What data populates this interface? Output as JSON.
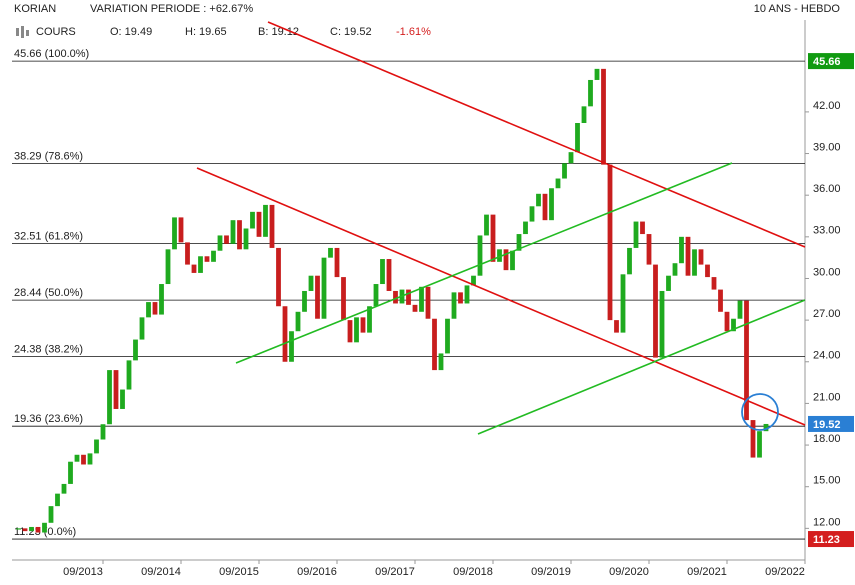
{
  "chart_data": {
    "type": "candlestick",
    "header": {
      "name": "KORIAN",
      "variation": "VARIATION PERIODE : +62.67%",
      "period": "10 ANS - HEBDO",
      "cours": "COURS",
      "open": "O: 19.49",
      "high": "H: 19.65",
      "low": "B: 19.12",
      "close": "C: 19.52",
      "change": "-1.61%"
    },
    "x": [
      "08/2012",
      "09/2012",
      "10/2012",
      "11/2012",
      "12/2012",
      "01/2013",
      "02/2013",
      "03/2013",
      "04/2013",
      "05/2013",
      "06/2013",
      "07/2013",
      "08/2013",
      "09/2013",
      "10/2013",
      "11/2013",
      "12/2013",
      "01/2014",
      "02/2014",
      "03/2014",
      "04/2014",
      "05/2014",
      "06/2014",
      "07/2014",
      "08/2014",
      "09/2014",
      "10/2014",
      "11/2014",
      "12/2014",
      "01/2015",
      "02/2015",
      "03/2015",
      "04/2015",
      "05/2015",
      "06/2015",
      "07/2015",
      "08/2015",
      "09/2015",
      "10/2015",
      "11/2015",
      "12/2015",
      "01/2016",
      "02/2016",
      "03/2016",
      "04/2016",
      "05/2016",
      "06/2016",
      "07/2016",
      "08/2016",
      "09/2016",
      "10/2016",
      "11/2016",
      "12/2016",
      "01/2017",
      "02/2017",
      "03/2017",
      "04/2017",
      "05/2017",
      "06/2017",
      "07/2017",
      "08/2017",
      "09/2017",
      "10/2017",
      "11/2017",
      "12/2017",
      "01/2018",
      "02/2018",
      "03/2018",
      "04/2018",
      "05/2018",
      "06/2018",
      "07/2018",
      "08/2018",
      "09/2018",
      "10/2018",
      "11/2018",
      "12/2018",
      "01/2019",
      "02/2019",
      "03/2019",
      "04/2019",
      "05/2019",
      "06/2019",
      "07/2019",
      "08/2019",
      "09/2019",
      "10/2019",
      "11/2019",
      "12/2019",
      "01/2020",
      "02/2020",
      "03/2020",
      "04/2020",
      "05/2020",
      "06/2020",
      "07/2020",
      "08/2020",
      "09/2020",
      "10/2020",
      "11/2020",
      "12/2020",
      "01/2021",
      "02/2021",
      "03/2021",
      "04/2021",
      "05/2021",
      "06/2021",
      "07/2021",
      "08/2021",
      "09/2021",
      "10/2021",
      "11/2021",
      "12/2021",
      "01/2022",
      "02/2022",
      "03/2022"
    ],
    "series": [
      {
        "name": "KORIAN",
        "up_color": "#1faa1f",
        "down_color": "#c81e1e",
        "values": [
          12.0,
          11.8,
          12.1,
          11.7,
          12.4,
          13.6,
          14.5,
          15.2,
          16.8,
          17.3,
          16.6,
          17.4,
          18.4,
          19.5,
          23.4,
          20.6,
          22.0,
          24.1,
          25.6,
          27.2,
          28.3,
          27.4,
          29.6,
          32.1,
          34.4,
          32.6,
          31.0,
          30.4,
          31.6,
          31.2,
          32.0,
          33.1,
          32.5,
          34.2,
          32.1,
          33.6,
          34.8,
          33.0,
          35.3,
          32.2,
          28.0,
          24.0,
          26.2,
          27.6,
          29.1,
          30.2,
          27.1,
          31.5,
          32.2,
          30.1,
          27.0,
          25.4,
          27.2,
          26.1,
          28.0,
          29.6,
          31.4,
          29.1,
          28.2,
          29.2,
          28.1,
          27.6,
          29.4,
          27.1,
          23.4,
          24.6,
          27.1,
          29.0,
          28.2,
          29.5,
          30.2,
          33.1,
          34.6,
          31.2,
          32.1,
          30.6,
          32.0,
          33.2,
          34.1,
          35.2,
          36.1,
          34.2,
          36.5,
          37.2,
          38.3,
          39.1,
          41.2,
          42.4,
          44.3,
          45.1,
          38.2,
          27.0,
          26.1,
          30.3,
          32.2,
          34.1,
          33.2,
          31.0,
          24.3,
          29.1,
          30.2,
          31.1,
          33.0,
          30.2,
          32.1,
          31.0,
          30.1,
          29.2,
          27.6,
          26.2,
          27.1,
          28.4,
          19.8,
          17.1,
          19.0,
          19.52
        ]
      }
    ],
    "xlim": [
      "07/2012",
      "09/2022"
    ],
    "xticks": [
      "09/2013",
      "09/2014",
      "09/2015",
      "09/2016",
      "09/2017",
      "09/2018",
      "09/2019",
      "09/2020",
      "09/2021",
      "09/2022"
    ],
    "ylim": [
      9.72,
      48.62
    ],
    "yticks": [
      {
        "value": 12,
        "label": "12.00"
      },
      {
        "value": 15,
        "label": "15.00"
      },
      {
        "value": 18,
        "label": "18.00"
      },
      {
        "value": 21,
        "label": "21.00"
      },
      {
        "value": 24,
        "label": "24.00"
      },
      {
        "value": 27,
        "label": "27.00"
      },
      {
        "value": 30,
        "label": "30.00"
      },
      {
        "value": 33,
        "label": "33.00"
      },
      {
        "value": 36,
        "label": "36.00"
      },
      {
        "value": 39,
        "label": "39.00"
      },
      {
        "value": 42,
        "label": "42.00"
      }
    ],
    "fib_levels": [
      {
        "value": 45.66,
        "label": "45.66 (100.0%)"
      },
      {
        "value": 38.29,
        "label": "38.29 (78.6%)"
      },
      {
        "value": 32.51,
        "label": "32.51 (61.8%)"
      },
      {
        "value": 28.44,
        "label": "28.44 (50.0%)"
      },
      {
        "value": 24.38,
        "label": "24.38 (38.2%)"
      },
      {
        "value": 19.36,
        "label": "19.36 (23.6%)"
      },
      {
        "value": 11.23,
        "label": "11.23 (0.0%)"
      }
    ],
    "price_tags": [
      {
        "value": 45.66,
        "color": "#109a10"
      },
      {
        "value": 19.52,
        "color": "#2a7fd4"
      },
      {
        "value": 11.23,
        "color": "#d41e1e"
      }
    ]
  }
}
